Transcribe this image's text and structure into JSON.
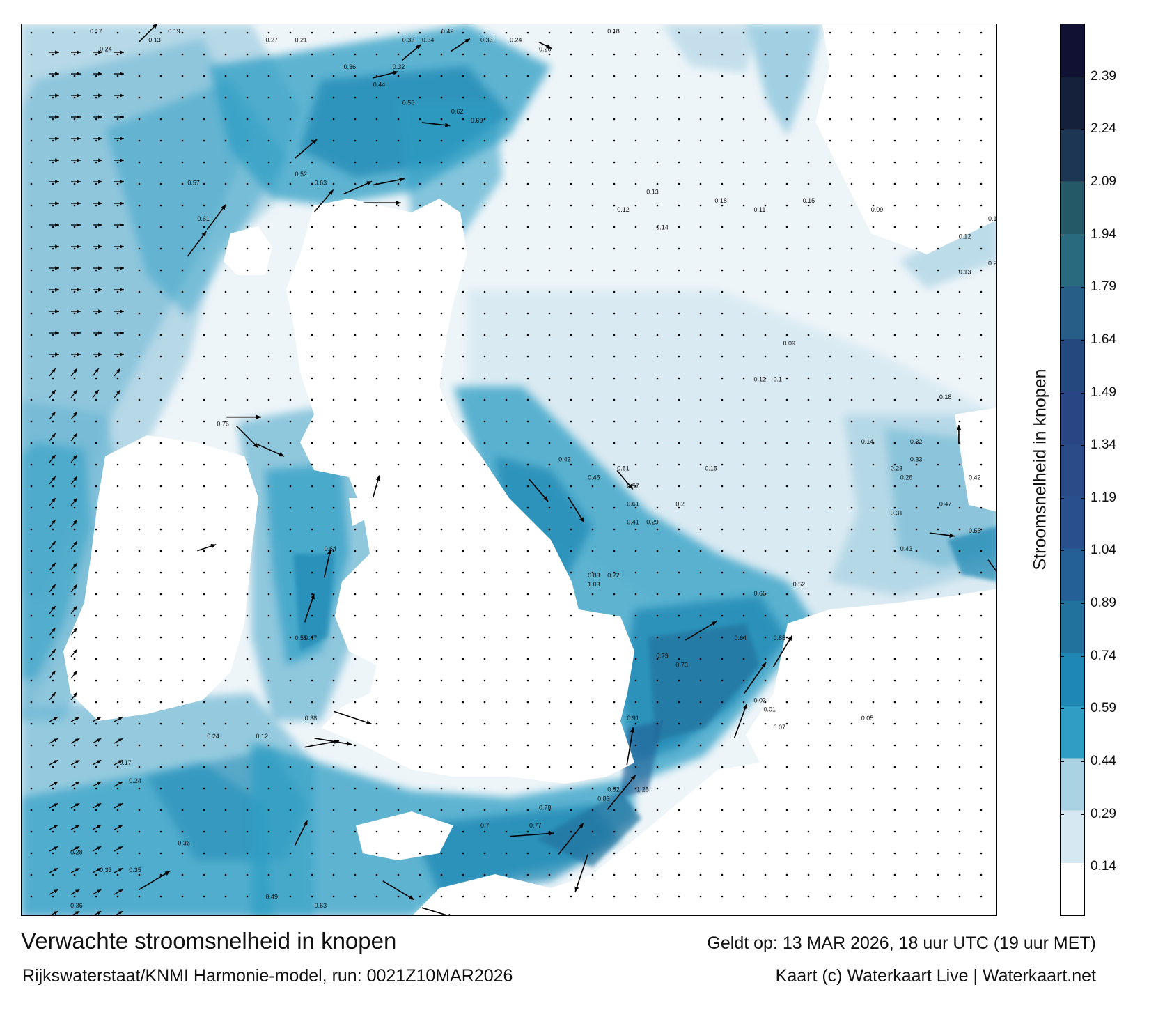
{
  "title": "Verwachte stroomsnelheid in knopen",
  "subtitle": "Rijkswaterstaat/KNMI Harmonie-model, run: 0021Z10MAR2026",
  "valid_time": "Geldt op: 13 MAR 2026, 18 uur UTC (19 uur MET)",
  "credit": "Kaart (c) Waterkaart Live | Waterkaart.net",
  "colorbar": {
    "label": "Stroomsnelheid in knopen",
    "ticks": [
      "2.39",
      "2.24",
      "2.09",
      "1.94",
      "1.79",
      "1.64",
      "1.49",
      "1.34",
      "1.19",
      "1.04",
      "0.89",
      "0.74",
      "0.59",
      "0.44",
      "0.29",
      "0.14"
    ],
    "tick_values": [
      2.39,
      2.24,
      2.09,
      1.94,
      1.79,
      1.64,
      1.49,
      1.34,
      1.19,
      1.04,
      0.89,
      0.74,
      0.59,
      0.44,
      0.29,
      0.14
    ],
    "max": 2.54,
    "min": 0.0,
    "colors": [
      "#ffffff",
      "#d6e8f1",
      "#a9d2e3",
      "#2f9ec4",
      "#1f87b3",
      "#21739e",
      "#245f95",
      "#2a4f8d",
      "#2b4a88",
      "#2a4584",
      "#24497e",
      "#265e88",
      "#2a6a7e",
      "#245968",
      "#1c3653",
      "#15203a",
      "#111233"
    ]
  },
  "speed_labels": [
    {
      "v": "0.17",
      "lon": 0.07,
      "lat": 0.01
    },
    {
      "v": "0.24",
      "lon": 0.08,
      "lat": 0.03
    },
    {
      "v": "0.13",
      "lon": 0.13,
      "lat": 0.02
    },
    {
      "v": "0.19",
      "lon": 0.15,
      "lat": 0.01
    },
    {
      "v": "0.27",
      "lon": 0.25,
      "lat": 0.02
    },
    {
      "v": "0.21",
      "lon": 0.28,
      "lat": 0.02
    },
    {
      "v": "0.33",
      "lon": 0.39,
      "lat": 0.02
    },
    {
      "v": "0.34",
      "lon": 0.41,
      "lat": 0.02
    },
    {
      "v": "0.42",
      "lon": 0.43,
      "lat": 0.01
    },
    {
      "v": "0.33",
      "lon": 0.47,
      "lat": 0.02
    },
    {
      "v": "0.24",
      "lon": 0.5,
      "lat": 0.02
    },
    {
      "v": "0.18",
      "lon": 0.6,
      "lat": 0.01
    },
    {
      "v": "0.26",
      "lon": 0.53,
      "lat": 0.03
    },
    {
      "v": "0.32",
      "lon": 0.38,
      "lat": 0.05
    },
    {
      "v": "0.36",
      "lon": 0.33,
      "lat": 0.05
    },
    {
      "v": "0.44",
      "lon": 0.36,
      "lat": 0.07
    },
    {
      "v": "0.56",
      "lon": 0.39,
      "lat": 0.09
    },
    {
      "v": "0.62",
      "lon": 0.44,
      "lat": 0.1
    },
    {
      "v": "0.69",
      "lon": 0.46,
      "lat": 0.11
    },
    {
      "v": "0.52",
      "lon": 0.28,
      "lat": 0.17
    },
    {
      "v": "0.61",
      "lon": 0.18,
      "lat": 0.22
    },
    {
      "v": "0.57",
      "lon": 0.17,
      "lat": 0.18
    },
    {
      "v": "0.63",
      "lon": 0.3,
      "lat": 0.18
    },
    {
      "v": "0.76",
      "lon": 0.2,
      "lat": 0.45
    },
    {
      "v": "0.64",
      "lon": 0.31,
      "lat": 0.59
    },
    {
      "v": "0.55",
      "lon": 0.28,
      "lat": 0.69
    },
    {
      "v": "0.47",
      "lon": 0.29,
      "lat": 0.69
    },
    {
      "v": "0.38",
      "lon": 0.29,
      "lat": 0.78
    },
    {
      "v": "0.24",
      "lon": 0.19,
      "lat": 0.8
    },
    {
      "v": "0.12",
      "lon": 0.24,
      "lat": 0.8
    },
    {
      "v": "0.17",
      "lon": 0.1,
      "lat": 0.83
    },
    {
      "v": "0.24",
      "lon": 0.11,
      "lat": 0.85
    },
    {
      "v": "0.36",
      "lon": 0.16,
      "lat": 0.92
    },
    {
      "v": "0.28",
      "lon": 0.05,
      "lat": 0.93
    },
    {
      "v": "0.33",
      "lon": 0.08,
      "lat": 0.95
    },
    {
      "v": "0.35",
      "lon": 0.11,
      "lat": 0.95
    },
    {
      "v": "0.36",
      "lon": 0.05,
      "lat": 0.99
    },
    {
      "v": "0.49",
      "lon": 0.25,
      "lat": 0.98
    },
    {
      "v": "0.63",
      "lon": 0.3,
      "lat": 0.99
    },
    {
      "v": "0.7",
      "lon": 0.47,
      "lat": 0.9
    },
    {
      "v": "0.77",
      "lon": 0.52,
      "lat": 0.9
    },
    {
      "v": "0.78",
      "lon": 0.53,
      "lat": 0.88
    },
    {
      "v": "0.83",
      "lon": 0.59,
      "lat": 0.87
    },
    {
      "v": "0.82",
      "lon": 0.6,
      "lat": 0.86
    },
    {
      "v": "0.91",
      "lon": 0.62,
      "lat": 0.78
    },
    {
      "v": "1.25",
      "lon": 0.63,
      "lat": 0.86
    },
    {
      "v": "1.03",
      "lon": 0.58,
      "lat": 0.63
    },
    {
      "v": "0.83",
      "lon": 0.58,
      "lat": 0.62
    },
    {
      "v": "0.72",
      "lon": 0.6,
      "lat": 0.62
    },
    {
      "v": "0.85",
      "lon": 0.77,
      "lat": 0.69
    },
    {
      "v": "0.79",
      "lon": 0.65,
      "lat": 0.71
    },
    {
      "v": "0.73",
      "lon": 0.67,
      "lat": 0.72
    },
    {
      "v": "0.64",
      "lon": 0.73,
      "lat": 0.69
    },
    {
      "v": "0.66",
      "lon": 0.75,
      "lat": 0.64
    },
    {
      "v": "0.52",
      "lon": 0.79,
      "lat": 0.63
    },
    {
      "v": "0.57",
      "lon": 0.62,
      "lat": 0.52
    },
    {
      "v": "0.61",
      "lon": 0.62,
      "lat": 0.54
    },
    {
      "v": "0.51",
      "lon": 0.61,
      "lat": 0.5
    },
    {
      "v": "0.46",
      "lon": 0.58,
      "lat": 0.51
    },
    {
      "v": "0.43",
      "lon": 0.55,
      "lat": 0.49
    },
    {
      "v": "0.41",
      "lon": 0.62,
      "lat": 0.56
    },
    {
      "v": "0.29",
      "lon": 0.64,
      "lat": 0.56
    },
    {
      "v": "0.2",
      "lon": 0.67,
      "lat": 0.54
    },
    {
      "v": "0.15",
      "lon": 0.7,
      "lat": 0.5
    },
    {
      "v": "0.12",
      "lon": 0.75,
      "lat": 0.4
    },
    {
      "v": "0.1",
      "lon": 0.77,
      "lat": 0.4
    },
    {
      "v": "0.09",
      "lon": 0.78,
      "lat": 0.36
    },
    {
      "v": "0.14",
      "lon": 0.65,
      "lat": 0.23
    },
    {
      "v": "0.13",
      "lon": 0.64,
      "lat": 0.19
    },
    {
      "v": "0.12",
      "lon": 0.61,
      "lat": 0.21
    },
    {
      "v": "0.18",
      "lon": 0.71,
      "lat": 0.2
    },
    {
      "v": "0.15",
      "lon": 0.8,
      "lat": 0.2
    },
    {
      "v": "0.11",
      "lon": 0.75,
      "lat": 0.21
    },
    {
      "v": "0.09",
      "lon": 0.87,
      "lat": 0.21
    },
    {
      "v": "0.12",
      "lon": 0.96,
      "lat": 0.24
    },
    {
      "v": "0.17",
      "lon": 0.99,
      "lat": 0.22
    },
    {
      "v": "0.2",
      "lon": 0.99,
      "lat": 0.27
    },
    {
      "v": "0.13",
      "lon": 0.96,
      "lat": 0.28
    },
    {
      "v": "0.23",
      "lon": 0.89,
      "lat": 0.5
    },
    {
      "v": "0.26",
      "lon": 0.9,
      "lat": 0.51
    },
    {
      "v": "0.31",
      "lon": 0.89,
      "lat": 0.55
    },
    {
      "v": "0.43",
      "lon": 0.9,
      "lat": 0.59
    },
    {
      "v": "0.47",
      "lon": 0.94,
      "lat": 0.54
    },
    {
      "v": "0.55",
      "lon": 0.97,
      "lat": 0.57
    },
    {
      "v": "0.42",
      "lon": 0.97,
      "lat": 0.51
    },
    {
      "v": "0.32",
      "lon": 0.91,
      "lat": 0.47
    },
    {
      "v": "0.33",
      "lon": 0.91,
      "lat": 0.49
    },
    {
      "v": "0.18",
      "lon": 0.94,
      "lat": 0.42
    },
    {
      "v": "0.14",
      "lon": 0.86,
      "lat": 0.47
    },
    {
      "v": "0.05",
      "lon": 0.86,
      "lat": 0.78
    },
    {
      "v": "0.07",
      "lon": 0.77,
      "lat": 0.79
    },
    {
      "v": "0.03",
      "lon": 0.75,
      "lat": 0.76
    },
    {
      "v": "0.01",
      "lon": 0.76,
      "lat": 0.77
    }
  ],
  "arrows": [
    {
      "lon": 0.12,
      "lat": 0.02,
      "u": 0.3,
      "v": -0.3
    },
    {
      "lon": 0.39,
      "lat": 0.04,
      "u": 0.3,
      "v": -0.25
    },
    {
      "lon": 0.44,
      "lat": 0.03,
      "u": 0.3,
      "v": -0.2
    },
    {
      "lon": 0.53,
      "lat": 0.02,
      "u": 0.2,
      "v": 0.1
    },
    {
      "lon": 0.41,
      "lat": 0.11,
      "u": 0.45,
      "v": 0.05
    },
    {
      "lon": 0.36,
      "lat": 0.06,
      "u": 0.4,
      "v": -0.1
    },
    {
      "lon": 0.28,
      "lat": 0.15,
      "u": 0.35,
      "v": -0.3
    },
    {
      "lon": 0.3,
      "lat": 0.21,
      "u": 0.3,
      "v": -0.35
    },
    {
      "lon": 0.19,
      "lat": 0.23,
      "u": 0.3,
      "v": -0.4
    },
    {
      "lon": 0.17,
      "lat": 0.26,
      "u": 0.3,
      "v": -0.4
    },
    {
      "lon": 0.33,
      "lat": 0.19,
      "u": 0.45,
      "v": -0.2
    },
    {
      "lon": 0.36,
      "lat": 0.18,
      "u": 0.5,
      "v": -0.1
    },
    {
      "lon": 0.35,
      "lat": 0.2,
      "u": 0.6,
      "v": 0.0
    },
    {
      "lon": 0.21,
      "lat": 0.44,
      "u": 0.55,
      "v": 0.0
    },
    {
      "lon": 0.22,
      "lat": 0.45,
      "u": 0.35,
      "v": 0.35
    },
    {
      "lon": 0.24,
      "lat": 0.47,
      "u": 0.45,
      "v": 0.2
    },
    {
      "lon": 0.31,
      "lat": 0.62,
      "u": 0.1,
      "v": -0.45
    },
    {
      "lon": 0.29,
      "lat": 0.67,
      "u": 0.15,
      "v": -0.45
    },
    {
      "lon": 0.3,
      "lat": 0.8,
      "u": 0.6,
      "v": 0.1
    },
    {
      "lon": 0.32,
      "lat": 0.77,
      "u": 0.6,
      "v": 0.2
    },
    {
      "lon": 0.29,
      "lat": 0.81,
      "u": 0.55,
      "v": -0.1
    },
    {
      "lon": 0.12,
      "lat": 0.97,
      "u": 0.5,
      "v": -0.3
    },
    {
      "lon": 0.28,
      "lat": 0.92,
      "u": 0.2,
      "v": -0.4
    },
    {
      "lon": 0.37,
      "lat": 0.96,
      "u": 0.5,
      "v": 0.3
    },
    {
      "lon": 0.41,
      "lat": 0.99,
      "u": 0.5,
      "v": 0.15
    },
    {
      "lon": 0.5,
      "lat": 0.91,
      "u": 0.7,
      "v": -0.05
    },
    {
      "lon": 0.55,
      "lat": 0.93,
      "u": 0.4,
      "v": -0.5
    },
    {
      "lon": 0.6,
      "lat": 0.88,
      "u": 0.45,
      "v": -0.55
    },
    {
      "lon": 0.62,
      "lat": 0.83,
      "u": 0.1,
      "v": -0.6
    },
    {
      "lon": 0.58,
      "lat": 0.93,
      "u": -0.2,
      "v": 0.6
    },
    {
      "lon": 0.68,
      "lat": 0.69,
      "u": 0.5,
      "v": -0.3
    },
    {
      "lon": 0.73,
      "lat": 0.8,
      "u": 0.2,
      "v": -0.55
    },
    {
      "lon": 0.74,
      "lat": 0.75,
      "u": 0.35,
      "v": -0.5
    },
    {
      "lon": 0.77,
      "lat": 0.72,
      "u": 0.3,
      "v": -0.5
    },
    {
      "lon": 0.56,
      "lat": 0.53,
      "u": 0.25,
      "v": 0.4
    },
    {
      "lon": 0.52,
      "lat": 0.51,
      "u": 0.3,
      "v": 0.35
    },
    {
      "lon": 0.61,
      "lat": 0.5,
      "u": 0.25,
      "v": 0.3
    },
    {
      "lon": 0.99,
      "lat": 0.6,
      "u": 0.25,
      "v": 0.35
    },
    {
      "lon": 0.93,
      "lat": 0.57,
      "u": 0.4,
      "v": 0.05
    },
    {
      "lon": 0.18,
      "lat": 0.59,
      "u": 0.3,
      "v": -0.1
    },
    {
      "lon": 0.36,
      "lat": 0.53,
      "u": 0.1,
      "v": -0.35
    },
    {
      "lon": 0.96,
      "lat": 0.47,
      "u": 0.0,
      "v": -0.3
    }
  ]
}
